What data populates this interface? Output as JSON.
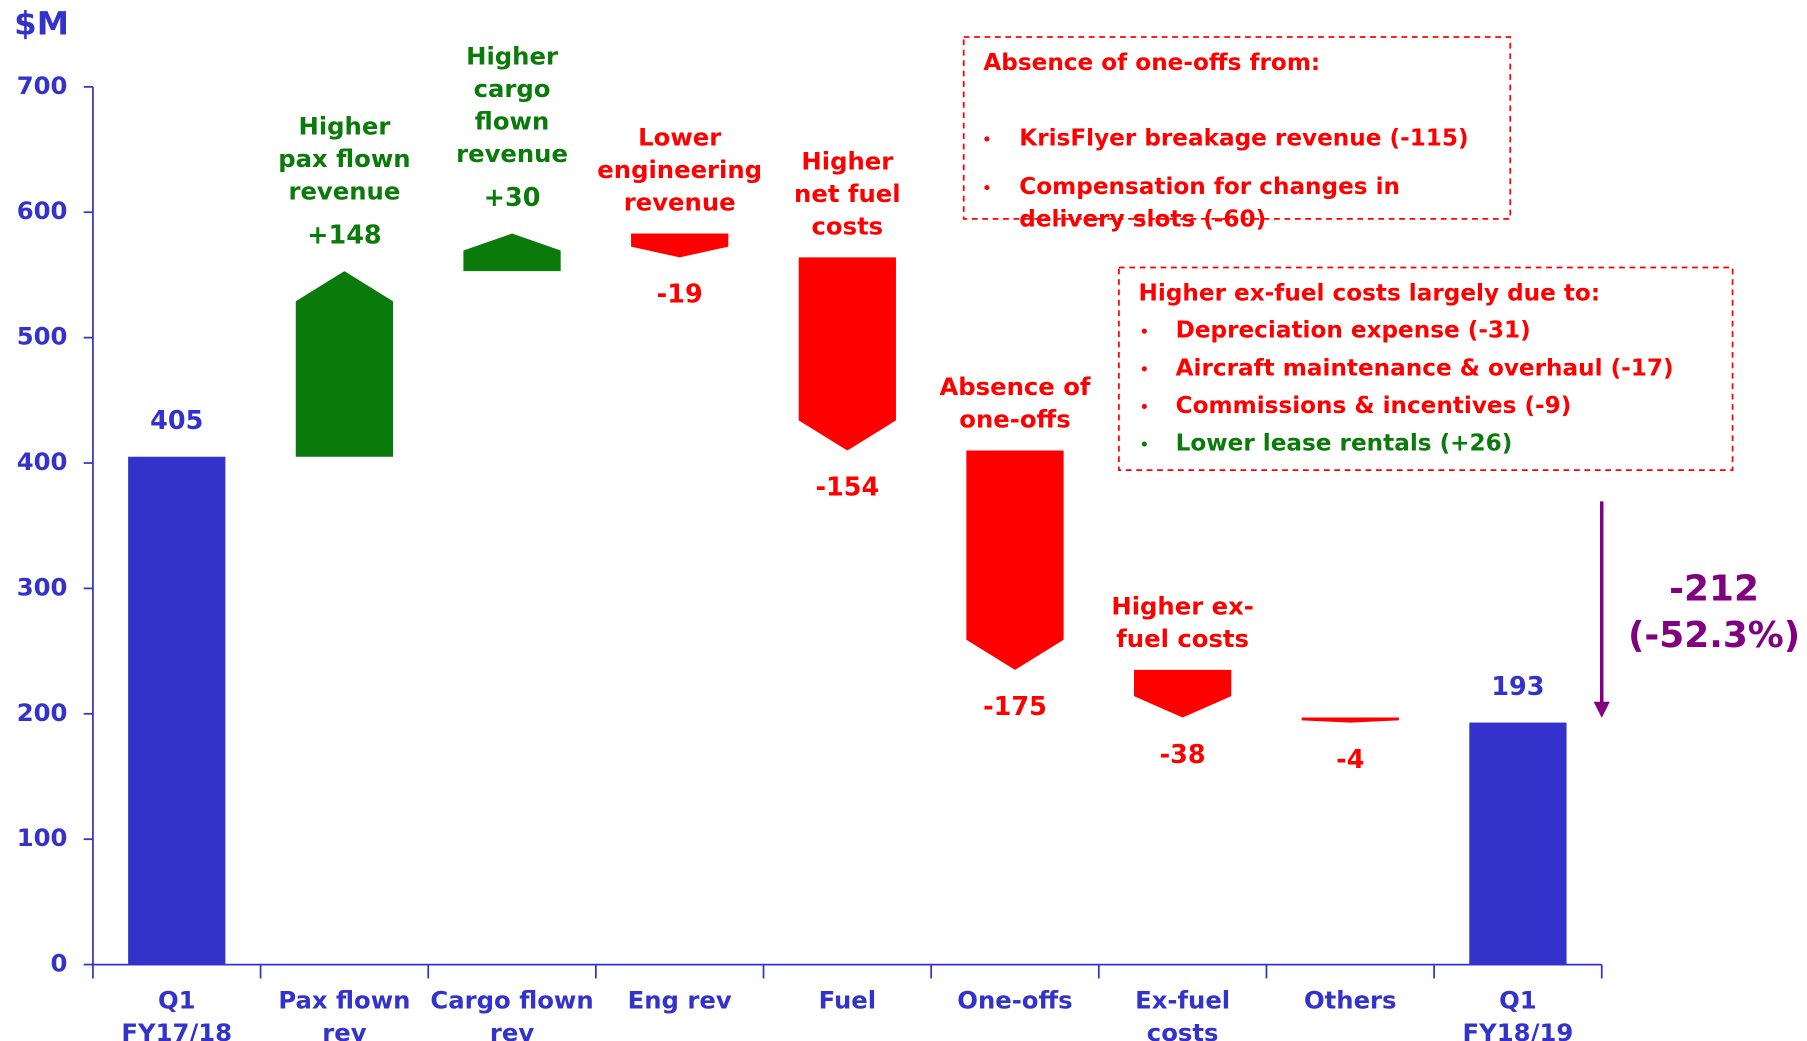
{
  "chart_data": {
    "type": "waterfall",
    "y_label": "$M",
    "categories": [
      [
        "Q1",
        "FY17/18"
      ],
      [
        "Pax flown",
        "rev"
      ],
      [
        "Cargo flown",
        "rev"
      ],
      [
        "Eng rev"
      ],
      [
        "Fuel"
      ],
      [
        "One-offs"
      ],
      [
        "Ex-fuel",
        "costs"
      ],
      [
        "Others"
      ],
      [
        "Q1",
        "FY18/19"
      ]
    ],
    "values": [
      405,
      148,
      30,
      -19,
      -154,
      -175,
      -38,
      -4,
      193
    ],
    "value_labels": [
      "405",
      "+148",
      "+30",
      "-19",
      "-154",
      "-175",
      "-38",
      "-4",
      "193"
    ],
    "measure": [
      "total",
      "relative",
      "relative",
      "relative",
      "relative",
      "relative",
      "relative",
      "relative",
      "total"
    ],
    "annotations": [
      null,
      [
        "Higher",
        "pax flown",
        "revenue"
      ],
      [
        "Higher",
        "cargo",
        "flown",
        "revenue"
      ],
      [
        "Lower",
        "engineering",
        "revenue"
      ],
      [
        "Higher",
        "net fuel",
        "costs"
      ],
      [
        "Absence of",
        "one-offs"
      ],
      [
        "Higher ex-",
        "fuel costs"
      ],
      null,
      null
    ],
    "colors": {
      "total": "#3333cc",
      "increase": "#0a7a0a",
      "decrease": "#ff0000",
      "change": "#800080",
      "axis": "#3333cc"
    },
    "ylim": [
      0,
      700
    ],
    "yticks": [
      0,
      100,
      200,
      300,
      400,
      500,
      600,
      700
    ],
    "change": {
      "value": -212,
      "label": "-212",
      "percent": -52.3,
      "percent_label": "(-52.3%)"
    },
    "notes": [
      {
        "title": "Absence of one-offs from:",
        "items": [
          {
            "lines": [
              "KrisFlyer breakage revenue (-115)"
            ],
            "color": "#ff0000"
          },
          {
            "lines": [
              "Compensation for changes in",
              "delivery slots (-60)"
            ],
            "color": "#ff0000"
          }
        ]
      },
      {
        "title": "Higher ex-fuel costs largely due to:",
        "items": [
          {
            "lines": [
              "Depreciation expense (-31)"
            ],
            "color": "#ff0000"
          },
          {
            "lines": [
              "Aircraft maintenance & overhaul (-17)"
            ],
            "color": "#ff0000"
          },
          {
            "lines": [
              "Commissions & incentives (-9)"
            ],
            "color": "#ff0000"
          },
          {
            "lines": [
              "Lower lease rentals (+26)"
            ],
            "color": "#0a7a0a"
          }
        ]
      }
    ]
  }
}
